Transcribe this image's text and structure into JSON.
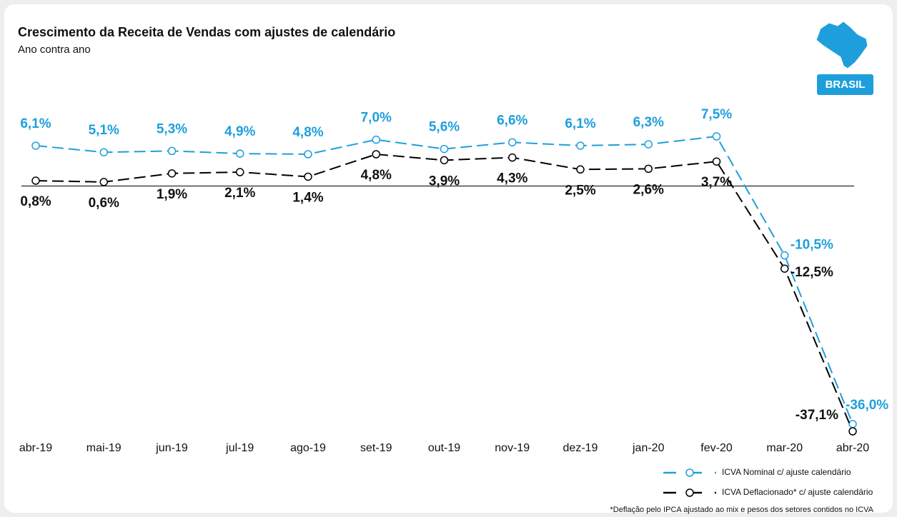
{
  "chart_data": {
    "type": "line",
    "title": "Crescimento da Receita de Vendas com ajustes de calendário",
    "subtitle": "Ano contra ano",
    "badge": "BRASIL",
    "footnote": "*Deflação pelo IPCA ajustado ao mix e pesos dos setores contidos no ICVA",
    "categories": [
      "abr-19",
      "mai-19",
      "jun-19",
      "jul-19",
      "ago-19",
      "set-19",
      "out-19",
      "nov-19",
      "dez-19",
      "jan-20",
      "fev-20",
      "mar-20",
      "abr-20"
    ],
    "series": [
      {
        "name": "ICVA Nominal c/ ajuste calendário",
        "color": "#1e9fdc",
        "values": [
          6.1,
          5.1,
          5.3,
          4.9,
          4.8,
          7.0,
          5.6,
          6.6,
          6.1,
          6.3,
          7.5,
          -10.5,
          -36.0
        ],
        "value_labels": [
          "6,1%",
          "5,1%",
          "5,3%",
          "4,9%",
          "4,8%",
          "7,0%",
          "5,6%",
          "6,6%",
          "6,1%",
          "6,3%",
          "7,5%",
          "-10,5%",
          "-36,0%"
        ]
      },
      {
        "name": "ICVA Deflacionado*  c/ ajuste calendário",
        "color": "#000000",
        "values": [
          0.8,
          0.6,
          1.9,
          2.1,
          1.4,
          4.8,
          3.9,
          4.3,
          2.5,
          2.6,
          3.7,
          -12.5,
          -37.1
        ],
        "value_labels": [
          "0,8%",
          "0,6%",
          "1,9%",
          "2,1%",
          "1,4%",
          "4,8%",
          "3,9%",
          "4,3%",
          "2,5%",
          "2,6%",
          "3,7%",
          "-12,5%",
          "-37,1%"
        ]
      }
    ]
  }
}
